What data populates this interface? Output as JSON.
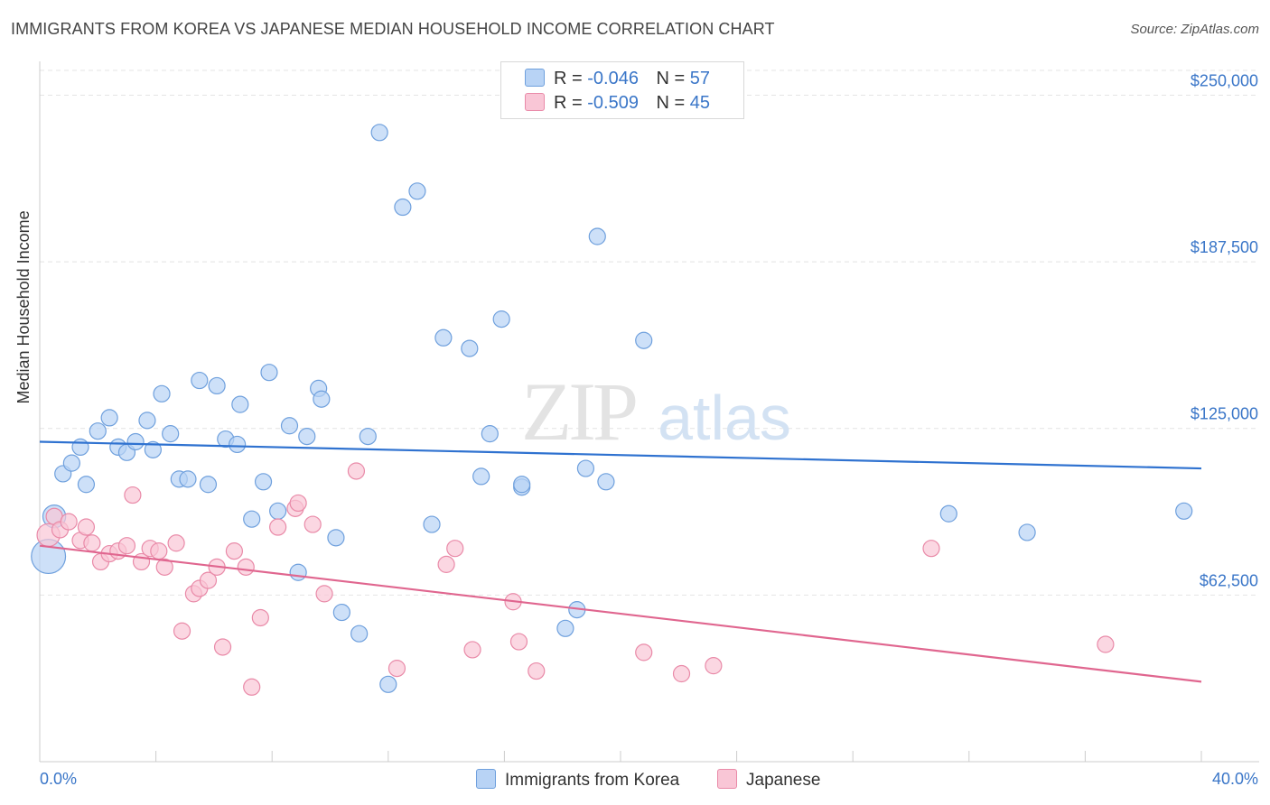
{
  "header": {
    "title": "IMMIGRANTS FROM KOREA VS JAPANESE MEDIAN HOUSEHOLD INCOME CORRELATION CHART",
    "source": "Source: ZipAtlas.com"
  },
  "watermark": {
    "zip": "ZIP",
    "atlas": "atlas"
  },
  "legend": {
    "rows": [
      {
        "r_label": "R =",
        "r_value": "-0.046",
        "n_label": "N =",
        "n_value": "57",
        "color": "#b8d3f5"
      },
      {
        "r_label": "R =",
        "r_value": "-0.509",
        "n_label": "N =",
        "n_value": "45",
        "color": "#f9c6d6"
      }
    ]
  },
  "chart_data": {
    "type": "scatter",
    "title": "IMMIGRANTS FROM KOREA VS JAPANESE MEDIAN HOUSEHOLD INCOME CORRELATION CHART",
    "xlabel": "",
    "ylabel": "Median Household Income",
    "xlim": [
      0,
      40
    ],
    "ylim": [
      0,
      262000
    ],
    "x_tick_labels": [
      "0.0%",
      "40.0%"
    ],
    "y_ticks": [
      62500,
      125000,
      187500,
      250000
    ],
    "y_tick_labels": [
      "$62,500",
      "$125,000",
      "$187,500",
      "$250,000"
    ],
    "grid": true,
    "legend_position": "top-center",
    "series": [
      {
        "name": "Immigrants from Korea",
        "color": "#6fa0dd",
        "fill": "#b8d3f5",
        "trend": {
          "x": [
            0,
            40
          ],
          "y": [
            120000,
            110000
          ],
          "color": "#2f72d0"
        },
        "points": [
          [
            0.3,
            77000,
            2.1
          ],
          [
            0.5,
            92000,
            1.4
          ],
          [
            0.8,
            108000,
            1
          ],
          [
            1.1,
            112000,
            1
          ],
          [
            1.4,
            118000,
            1
          ],
          [
            1.6,
            104000,
            1
          ],
          [
            2.0,
            124000,
            1
          ],
          [
            2.4,
            129000,
            1
          ],
          [
            2.7,
            118000,
            1
          ],
          [
            3.0,
            116000,
            1
          ],
          [
            3.3,
            120000,
            1
          ],
          [
            3.7,
            128000,
            1
          ],
          [
            3.9,
            117000,
            1
          ],
          [
            4.2,
            138000,
            1
          ],
          [
            4.5,
            123000,
            1
          ],
          [
            4.8,
            106000,
            1
          ],
          [
            5.1,
            106000,
            1
          ],
          [
            5.5,
            143000,
            1
          ],
          [
            5.8,
            104000,
            1
          ],
          [
            6.1,
            141000,
            1
          ],
          [
            6.4,
            121000,
            1
          ],
          [
            6.8,
            119000,
            1
          ],
          [
            6.9,
            134000,
            1
          ],
          [
            7.3,
            91000,
            1
          ],
          [
            7.7,
            105000,
            1
          ],
          [
            7.9,
            146000,
            1
          ],
          [
            8.2,
            94000,
            1
          ],
          [
            8.6,
            126000,
            1
          ],
          [
            8.9,
            71000,
            1
          ],
          [
            9.2,
            122000,
            1
          ],
          [
            9.6,
            140000,
            1
          ],
          [
            9.7,
            136000,
            1
          ],
          [
            10.2,
            84000,
            1
          ],
          [
            10.4,
            56000,
            1
          ],
          [
            11.0,
            48000,
            1
          ],
          [
            11.3,
            122000,
            1
          ],
          [
            11.7,
            236000,
            1
          ],
          [
            12.0,
            29000,
            1
          ],
          [
            12.5,
            208000,
            1
          ],
          [
            13.0,
            214000,
            1
          ],
          [
            13.5,
            89000,
            1
          ],
          [
            13.9,
            159000,
            1
          ],
          [
            14.8,
            155000,
            1
          ],
          [
            15.2,
            107000,
            1
          ],
          [
            15.5,
            123000,
            1
          ],
          [
            15.9,
            166000,
            1
          ],
          [
            16.6,
            103000,
            1
          ],
          [
            16.6,
            104000,
            1
          ],
          [
            18.1,
            50000,
            1
          ],
          [
            18.5,
            57000,
            1
          ],
          [
            18.8,
            110000,
            1
          ],
          [
            19.2,
            197000,
            1
          ],
          [
            19.5,
            105000,
            1
          ],
          [
            20.8,
            158000,
            1
          ],
          [
            31.3,
            93000,
            1
          ],
          [
            34.0,
            86000,
            1
          ],
          [
            39.4,
            94000,
            1
          ]
        ]
      },
      {
        "name": "Japanese",
        "color": "#e98aa8",
        "fill": "#f9c6d6",
        "trend": {
          "x": [
            0,
            40
          ],
          "y": [
            81000,
            30000
          ],
          "color": "#e0668f"
        },
        "points": [
          [
            0.3,
            85000,
            1.4
          ],
          [
            0.5,
            92000,
            1
          ],
          [
            0.7,
            87000,
            1
          ],
          [
            1.0,
            90000,
            1
          ],
          [
            1.4,
            83000,
            1
          ],
          [
            1.6,
            88000,
            1
          ],
          [
            1.8,
            82000,
            1
          ],
          [
            2.1,
            75000,
            1
          ],
          [
            2.4,
            78000,
            1
          ],
          [
            2.7,
            79000,
            1
          ],
          [
            3.0,
            81000,
            1
          ],
          [
            3.2,
            100000,
            1
          ],
          [
            3.5,
            75000,
            1
          ],
          [
            3.8,
            80000,
            1
          ],
          [
            4.1,
            79000,
            1
          ],
          [
            4.3,
            73000,
            1
          ],
          [
            4.7,
            82000,
            1
          ],
          [
            4.9,
            49000,
            1
          ],
          [
            5.3,
            63000,
            1
          ],
          [
            5.5,
            65000,
            1
          ],
          [
            5.8,
            68000,
            1
          ],
          [
            6.1,
            73000,
            1
          ],
          [
            6.3,
            43000,
            1
          ],
          [
            6.7,
            79000,
            1
          ],
          [
            7.1,
            73000,
            1
          ],
          [
            7.3,
            28000,
            1
          ],
          [
            7.6,
            54000,
            1
          ],
          [
            8.2,
            88000,
            1
          ],
          [
            8.8,
            95000,
            1
          ],
          [
            8.9,
            97000,
            1
          ],
          [
            9.4,
            89000,
            1
          ],
          [
            9.8,
            63000,
            1
          ],
          [
            10.9,
            109000,
            1
          ],
          [
            12.3,
            35000,
            1
          ],
          [
            14.0,
            74000,
            1
          ],
          [
            14.3,
            80000,
            1
          ],
          [
            14.9,
            42000,
            1
          ],
          [
            16.3,
            60000,
            1
          ],
          [
            16.5,
            45000,
            1
          ],
          [
            17.1,
            34000,
            1
          ],
          [
            20.8,
            41000,
            1
          ],
          [
            22.1,
            33000,
            1
          ],
          [
            23.2,
            36000,
            1
          ],
          [
            30.7,
            80000,
            1
          ],
          [
            36.7,
            44000,
            1
          ]
        ]
      }
    ]
  },
  "bottom_legend": [
    {
      "label": "Immigrants from Korea",
      "color": "#b8d3f5"
    },
    {
      "label": "Japanese",
      "color": "#f9c6d6"
    }
  ]
}
